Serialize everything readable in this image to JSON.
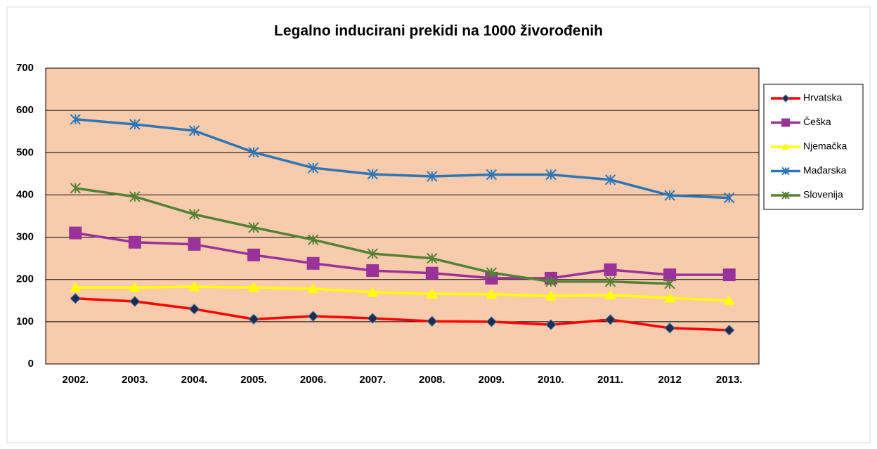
{
  "chart_data": {
    "type": "line",
    "title": "Legalno inducirani prekidi na 1000 živorođenih",
    "categories": [
      "2002.",
      "2003.",
      "2004.",
      "2005.",
      "2006.",
      "2007.",
      "2008.",
      "2009.",
      "2010.",
      "2011.",
      "2012",
      "2013."
    ],
    "series": [
      {
        "name": "Hrvatska",
        "color": "#ff0000",
        "marker": "diamond",
        "marker_color": "#1f2d4d",
        "values": [
          155,
          148,
          130,
          106,
          113,
          108,
          101,
          100,
          93,
          105,
          85,
          80
        ]
      },
      {
        "name": "Češka",
        "color": "#993399",
        "marker": "square",
        "marker_color": "#993399",
        "values": [
          310,
          288,
          283,
          258,
          238,
          221,
          215,
          203,
          203,
          223,
          211,
          211
        ]
      },
      {
        "name": "Njemačka",
        "color": "#ffff00",
        "marker": "triangle",
        "marker_color": "#ffff00",
        "values": [
          181,
          181,
          183,
          181,
          178,
          170,
          166,
          165,
          161,
          163,
          156,
          150
        ]
      },
      {
        "name": "Mađarska",
        "color": "#2e75b6",
        "marker": "asterisk",
        "marker_color": "#2e75b6",
        "values": [
          579,
          567,
          552,
          501,
          464,
          449,
          444,
          448,
          448,
          436,
          399,
          393
        ]
      },
      {
        "name": "Slovenija",
        "color": "#548235",
        "marker": "star",
        "marker_color": "#548235",
        "values": [
          416,
          396,
          354,
          323,
          294,
          261,
          250,
          216,
          195,
          195,
          190,
          null
        ]
      }
    ],
    "ylim": [
      0,
      700
    ],
    "yticks": [
      0,
      100,
      200,
      300,
      400,
      500,
      600,
      700
    ],
    "grid": true,
    "legend": "right",
    "plot_background": "#f8cbad"
  }
}
